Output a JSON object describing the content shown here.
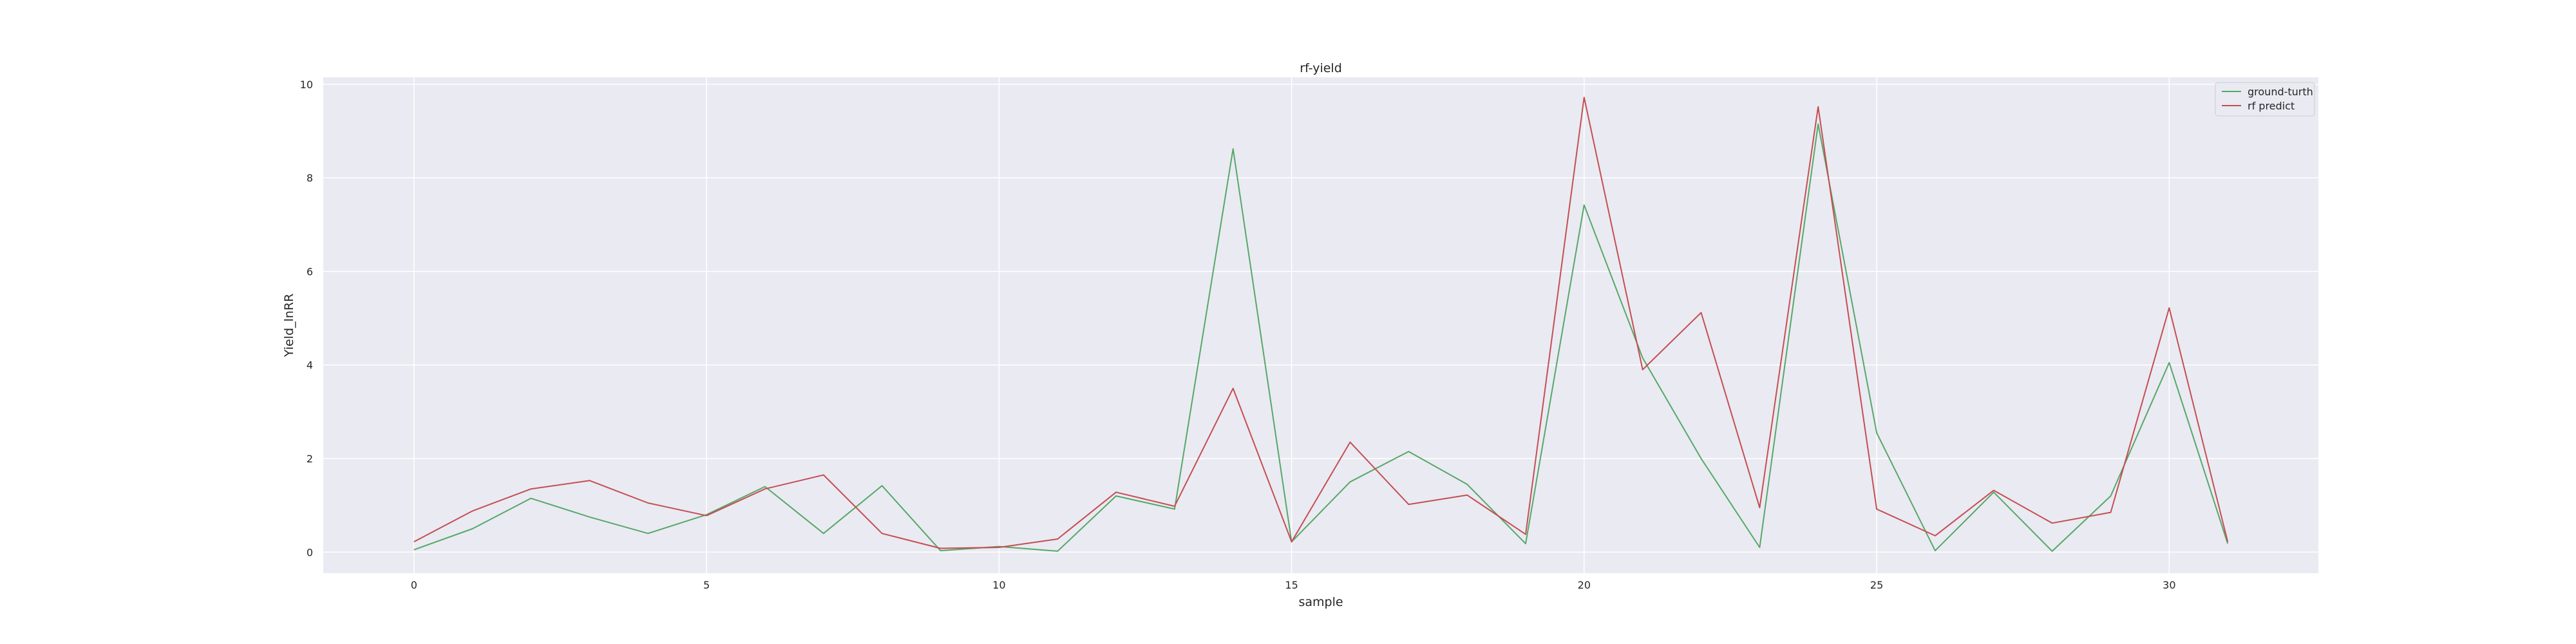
{
  "chart_data": {
    "type": "line",
    "title": "rf-yield",
    "xlabel": "sample",
    "ylabel": "Yield_lnRR",
    "xlim": [
      -1.55,
      32.55
    ],
    "ylim": [
      -0.45,
      10.15
    ],
    "x_ticks": [
      0,
      5,
      10,
      15,
      20,
      25,
      30
    ],
    "y_ticks": [
      0,
      2,
      4,
      6,
      8,
      10
    ],
    "grid": true,
    "legend_position": "top-right",
    "x": [
      0,
      1,
      2,
      3,
      4,
      5,
      6,
      7,
      8,
      9,
      10,
      11,
      12,
      13,
      14,
      15,
      16,
      17,
      18,
      19,
      20,
      21,
      22,
      23,
      24,
      25,
      26,
      27,
      28,
      29,
      30,
      31
    ],
    "series": [
      {
        "name": "ground-turth",
        "color": "#55a868",
        "values": [
          0.05,
          0.5,
          1.15,
          0.75,
          0.4,
          0.8,
          1.4,
          0.4,
          1.42,
          0.03,
          0.12,
          0.02,
          1.2,
          0.92,
          8.62,
          0.22,
          1.5,
          2.15,
          1.45,
          0.18,
          7.42,
          4.15,
          2.0,
          0.1,
          9.15,
          2.55,
          0.03,
          1.28,
          0.02,
          1.2,
          4.05,
          0.18
        ]
      },
      {
        "name": "rf predict",
        "color": "#c44e52",
        "values": [
          0.22,
          0.88,
          1.35,
          1.53,
          1.05,
          0.78,
          1.35,
          1.65,
          0.4,
          0.08,
          0.1,
          0.28,
          1.28,
          0.98,
          3.5,
          0.22,
          2.35,
          1.02,
          1.22,
          0.38,
          9.72,
          3.9,
          5.12,
          0.95,
          9.52,
          0.92,
          0.35,
          1.32,
          0.62,
          0.85,
          5.22,
          0.22
        ]
      }
    ]
  }
}
